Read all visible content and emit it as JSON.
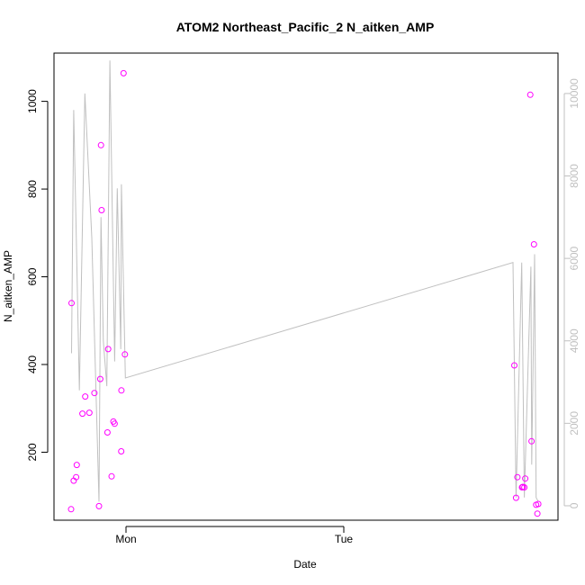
{
  "chart_data": {
    "type": "scatter",
    "title": "ATOM2 Northeast_Pacific_2 N_aitken_AMP",
    "xlabel": "Date",
    "ylabel": "N_aitken_AMP",
    "x_ticks": [
      "Mon",
      "Tue"
    ],
    "y_ticks": [
      "200",
      "400",
      "600",
      "800",
      "1000"
    ],
    "y2_ticks": [
      "0",
      "2000",
      "4000",
      "6000",
      "8000",
      "10000"
    ],
    "ylim": [
      45,
      1110
    ],
    "y2lim": [
      -350,
      10980
    ],
    "grid": false,
    "colors": {
      "points": "#ff00ff",
      "line": "#c0c0c0",
      "axis": "#000000",
      "axis2": "#c0c0c0"
    },
    "series": [
      {
        "values": [
          [
            -0.252,
            70
          ],
          [
            -0.25,
            540
          ],
          [
            -0.24,
            135
          ],
          [
            -0.229,
            143
          ],
          [
            -0.226,
            171
          ],
          [
            -0.2,
            288
          ],
          [
            -0.187,
            327
          ],
          [
            -0.168,
            290
          ],
          [
            -0.145,
            335
          ],
          [
            -0.124,
            77
          ],
          [
            -0.118,
            367
          ],
          [
            -0.115,
            900
          ],
          [
            -0.112,
            752
          ],
          [
            -0.085,
            245
          ],
          [
            -0.082,
            435
          ],
          [
            -0.066,
            145
          ],
          [
            -0.058,
            270
          ],
          [
            -0.052,
            265
          ],
          [
            -0.022,
            202
          ],
          [
            -0.021,
            341
          ],
          [
            -0.011,
            1064
          ],
          [
            -0.005,
            423
          ],
          [
            1.783,
            398
          ],
          [
            1.791,
            96
          ],
          [
            1.797,
            143
          ],
          [
            1.818,
            120
          ],
          [
            1.822,
            121
          ],
          [
            1.829,
            120
          ],
          [
            1.833,
            140
          ],
          [
            1.856,
            1015
          ],
          [
            1.862,
            225
          ],
          [
            1.873,
            674
          ],
          [
            1.883,
            80
          ],
          [
            1.889,
            60
          ],
          [
            1.893,
            82
          ]
        ]
      },
      {
        "axis": "right",
        "values": [
          [
            -0.25,
            3700
          ],
          [
            -0.24,
            9600
          ],
          [
            -0.214,
            2800
          ],
          [
            -0.189,
            10000
          ],
          [
            -0.157,
            6500
          ],
          [
            -0.124,
            100
          ],
          [
            -0.115,
            7000
          ],
          [
            -0.104,
            4000
          ],
          [
            -0.088,
            2900
          ],
          [
            -0.074,
            10800
          ],
          [
            -0.052,
            3500
          ],
          [
            -0.04,
            7700
          ],
          [
            -0.024,
            3800
          ],
          [
            -0.021,
            7800
          ],
          [
            -0.003,
            3100
          ],
          [
            1.777,
            5900
          ],
          [
            1.791,
            200
          ],
          [
            1.817,
            5900
          ],
          [
            1.829,
            200
          ],
          [
            1.859,
            5800
          ],
          [
            1.863,
            1000
          ],
          [
            1.876,
            6100
          ],
          [
            1.883,
            200
          ],
          [
            1.893,
            100
          ]
        ]
      }
    ]
  }
}
